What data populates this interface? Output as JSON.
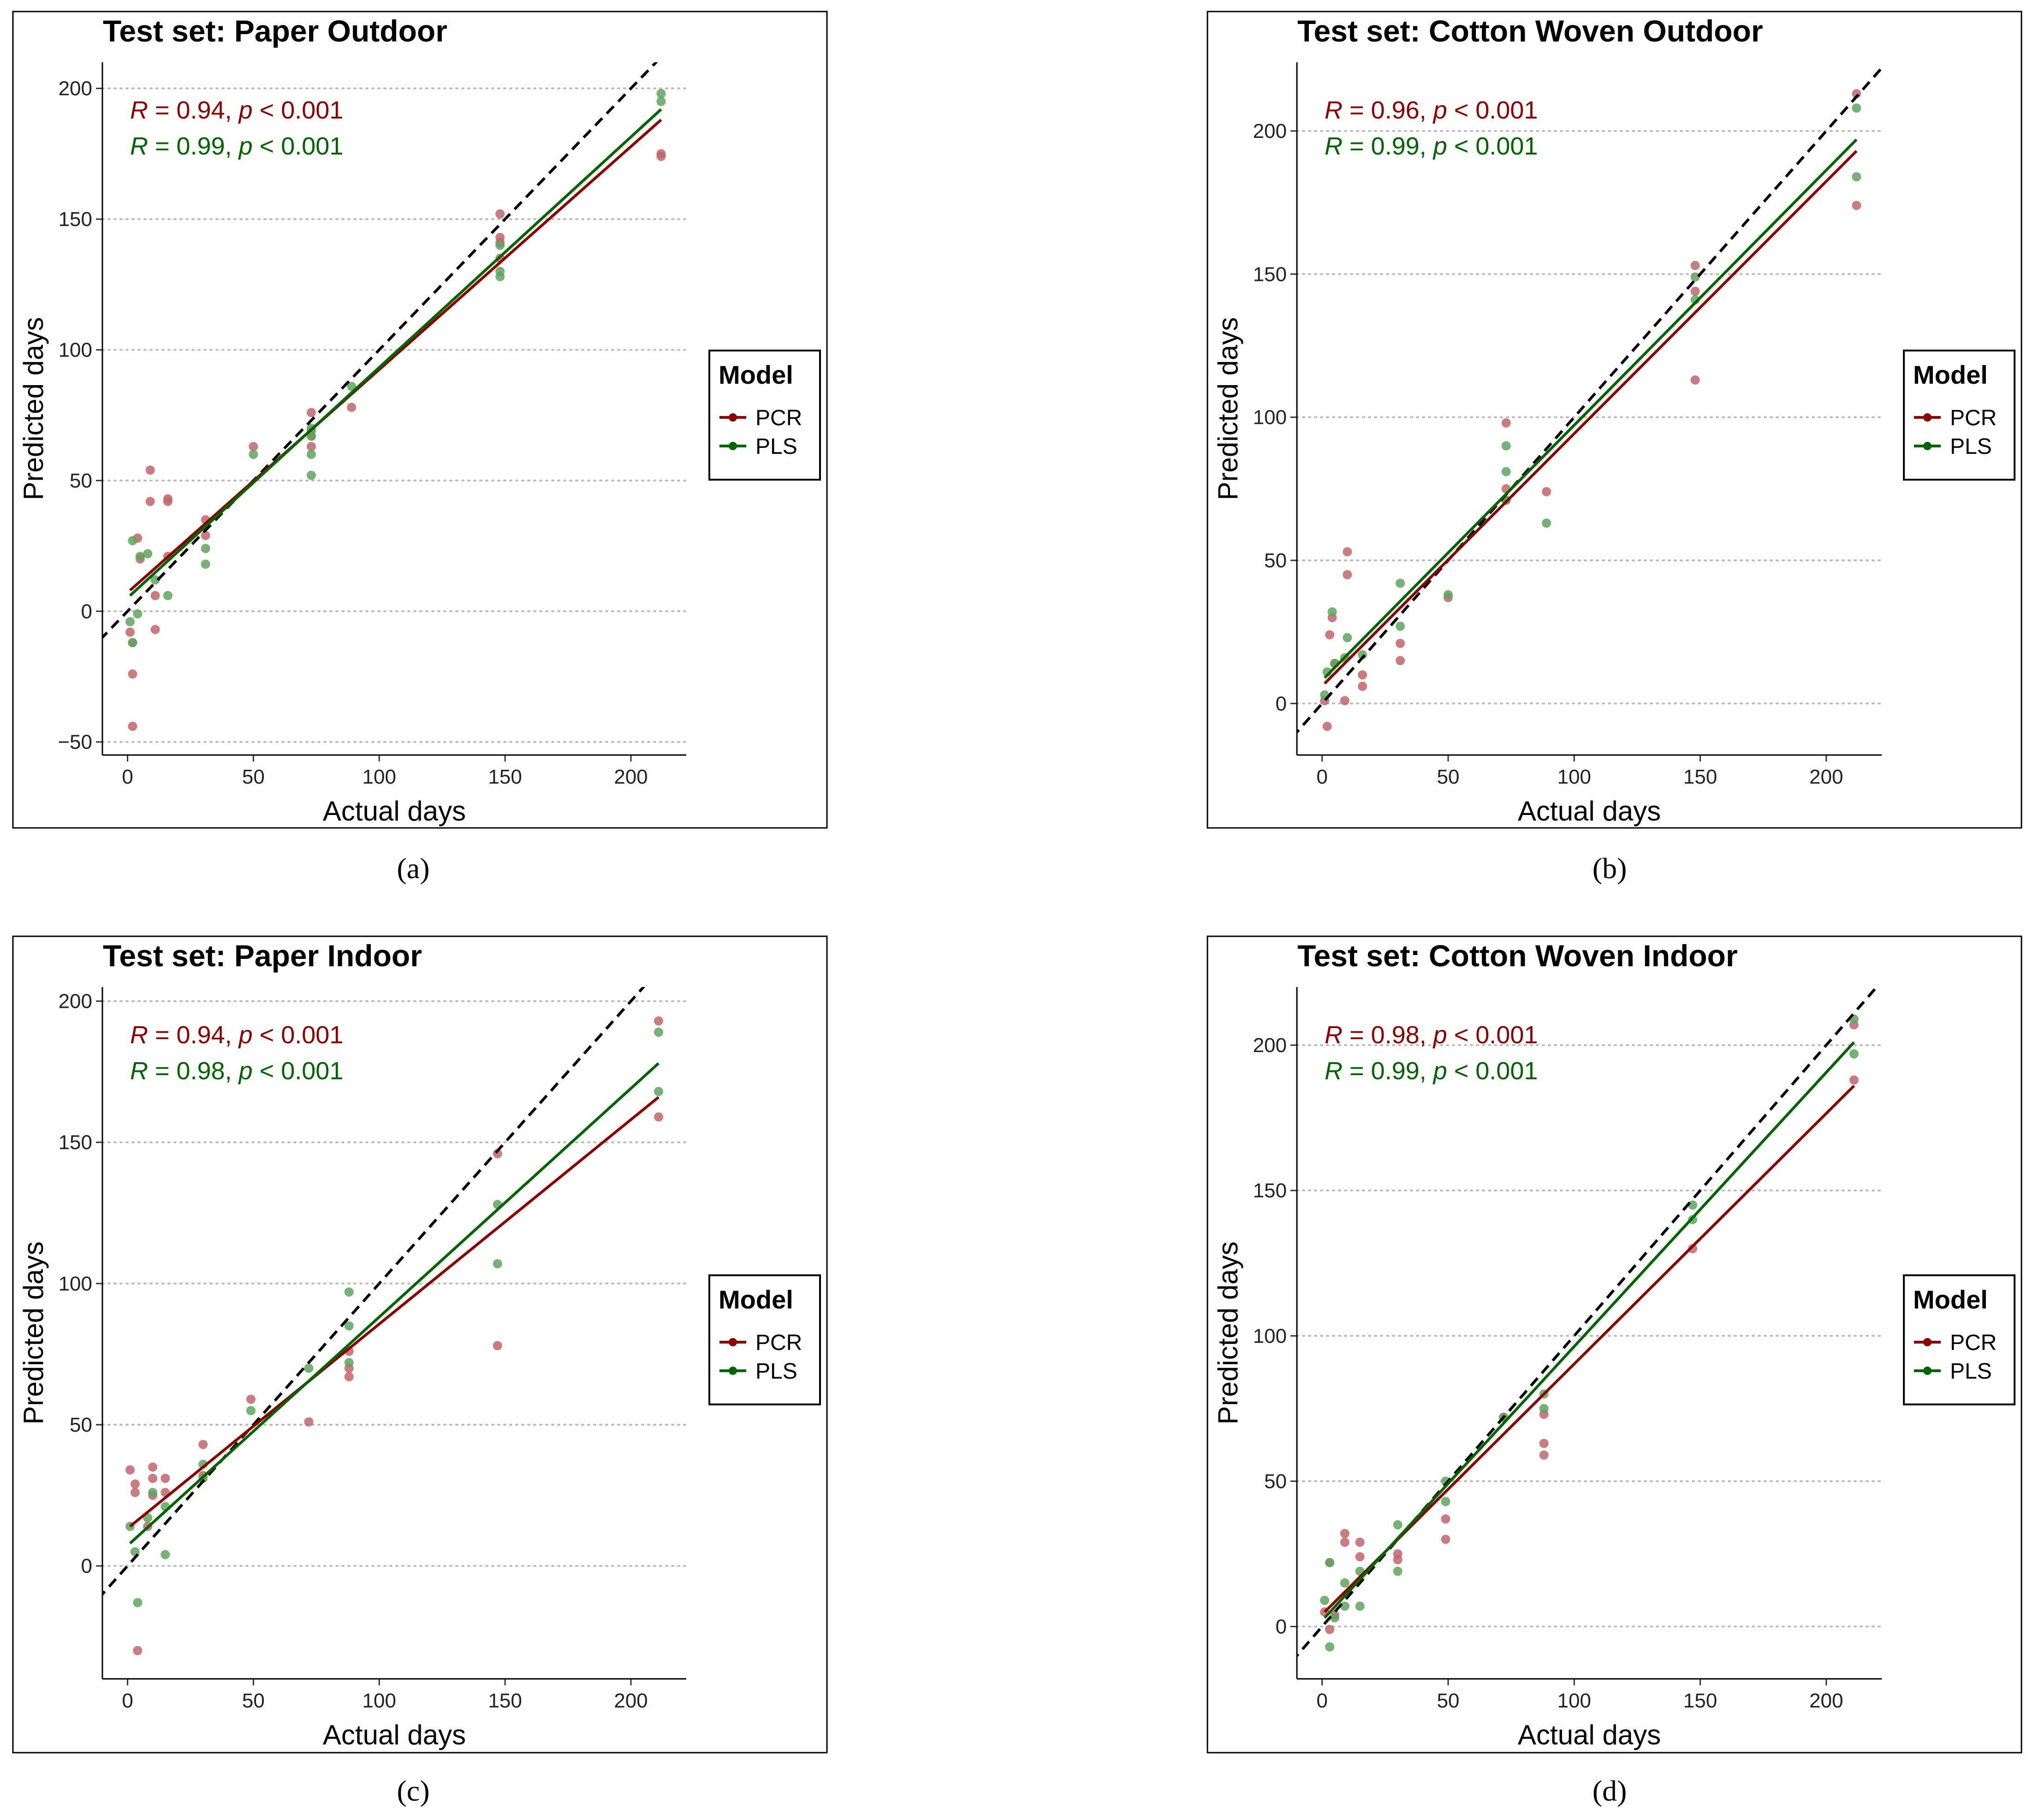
{
  "colors": {
    "pcr": "#8b0000",
    "pls": "#006400",
    "pcr_point": "#c0666a",
    "pls_point": "#5ea35e",
    "grid": "#bbbbbb",
    "identity": "#000000"
  },
  "legend": {
    "title": "Model",
    "labels": [
      "PCR",
      "PLS"
    ]
  },
  "x_axis_label": "Actual days",
  "y_axis_label": "Predicted days",
  "captions": [
    "(a)",
    "(b)",
    "(c)",
    "(d)"
  ],
  "chart_data": [
    {
      "type": "scatter",
      "title": "Test set: Paper Outdoor",
      "xlabel": "Actual days",
      "ylabel": "Predicted days",
      "xlim": [
        -10,
        222
      ],
      "ylim": [
        -55,
        210
      ],
      "xticks": [
        0,
        50,
        100,
        150,
        200
      ],
      "yticks": [
        -50,
        0,
        50,
        100,
        150,
        200
      ],
      "grid": "horizontal-dotted",
      "identity_line": true,
      "stats": [
        {
          "model": "PCR",
          "r": "0.94",
          "p": "0.001"
        },
        {
          "model": "PLS",
          "r": "0.99",
          "p": "0.001"
        }
      ],
      "series": [
        {
          "name": "PCR",
          "fit": [
            [
              1,
              8
            ],
            [
              212,
              188
            ]
          ],
          "points": [
            [
              1,
              -8
            ],
            [
              2,
              -12
            ],
            [
              2,
              -24
            ],
            [
              2,
              -44
            ],
            [
              4,
              28
            ],
            [
              5,
              20
            ],
            [
              9,
              54
            ],
            [
              9,
              42
            ],
            [
              11,
              6
            ],
            [
              11,
              -7
            ],
            [
              16,
              43
            ],
            [
              16,
              42
            ],
            [
              16,
              21
            ],
            [
              31,
              35
            ],
            [
              31,
              29
            ],
            [
              50,
              63
            ],
            [
              73,
              76
            ],
            [
              73,
              69
            ],
            [
              73,
              67
            ],
            [
              73,
              63
            ],
            [
              89,
              78
            ],
            [
              148,
              152
            ],
            [
              148,
              143
            ],
            [
              148,
              141
            ],
            [
              148,
              135
            ],
            [
              212,
              175
            ],
            [
              212,
              174
            ]
          ]
        },
        {
          "name": "PLS",
          "fit": [
            [
              1,
              6
            ],
            [
              212,
              192
            ]
          ],
          "points": [
            [
              1,
              -4
            ],
            [
              2,
              -12
            ],
            [
              2,
              27
            ],
            [
              4,
              -1
            ],
            [
              5,
              21
            ],
            [
              8,
              22
            ],
            [
              11,
              12
            ],
            [
              16,
              6
            ],
            [
              31,
              24
            ],
            [
              31,
              18
            ],
            [
              50,
              60
            ],
            [
              73,
              70
            ],
            [
              73,
              67
            ],
            [
              73,
              60
            ],
            [
              73,
              52
            ],
            [
              89,
              86
            ],
            [
              148,
              140
            ],
            [
              148,
              130
            ],
            [
              148,
              128
            ],
            [
              212,
              198
            ],
            [
              212,
              195
            ]
          ]
        }
      ]
    },
    {
      "type": "scatter",
      "title": "Test set: Cotton Woven Outdoor",
      "xlabel": "Actual days",
      "ylabel": "Predicted days",
      "xlim": [
        -10,
        222
      ],
      "ylim": [
        -18,
        224
      ],
      "xticks": [
        0,
        50,
        100,
        150,
        200
      ],
      "yticks": [
        0,
        50,
        100,
        150,
        200
      ],
      "grid": "horizontal-dotted",
      "identity_line": true,
      "stats": [
        {
          "model": "PCR",
          "r": "0.96",
          "p": "0.001"
        },
        {
          "model": "PLS",
          "r": "0.99",
          "p": "0.001"
        }
      ],
      "series": [
        {
          "name": "PCR",
          "fit": [
            [
              1,
              7
            ],
            [
              212,
              193
            ]
          ],
          "points": [
            [
              1,
              1
            ],
            [
              2,
              -8
            ],
            [
              3,
              24
            ],
            [
              4,
              30
            ],
            [
              5,
              14
            ],
            [
              9,
              1
            ],
            [
              10,
              53
            ],
            [
              10,
              45
            ],
            [
              16,
              10
            ],
            [
              16,
              6
            ],
            [
              31,
              21
            ],
            [
              31,
              15
            ],
            [
              50,
              37
            ],
            [
              73,
              98
            ],
            [
              73,
              75
            ],
            [
              73,
              71
            ],
            [
              89,
              74
            ],
            [
              148,
              153
            ],
            [
              148,
              144
            ],
            [
              148,
              113
            ],
            [
              212,
              213
            ],
            [
              212,
              174
            ]
          ]
        },
        {
          "name": "PLS",
          "fit": [
            [
              1,
              9
            ],
            [
              212,
              197
            ]
          ],
          "points": [
            [
              1,
              3
            ],
            [
              2,
              11
            ],
            [
              4,
              32
            ],
            [
              5,
              14
            ],
            [
              9,
              16
            ],
            [
              10,
              23
            ],
            [
              16,
              17
            ],
            [
              31,
              42
            ],
            [
              31,
              27
            ],
            [
              50,
              38
            ],
            [
              73,
              90
            ],
            [
              73,
              81
            ],
            [
              73,
              71
            ],
            [
              89,
              63
            ],
            [
              148,
              149
            ],
            [
              148,
              141
            ],
            [
              212,
              208
            ],
            [
              212,
              184
            ]
          ]
        }
      ]
    },
    {
      "type": "scatter",
      "title": "Test set: Paper Indoor",
      "xlabel": "Actual days",
      "ylabel": "Predicted days",
      "xlim": [
        -10,
        222
      ],
      "ylim": [
        -40,
        205
      ],
      "xticks": [
        0,
        50,
        100,
        150,
        200
      ],
      "yticks": [
        0,
        50,
        100,
        150,
        200
      ],
      "grid": "horizontal-dotted",
      "identity_line": true,
      "stats": [
        {
          "model": "PCR",
          "r": "0.94",
          "p": "0.001"
        },
        {
          "model": "PLS",
          "r": "0.98",
          "p": "0.001"
        }
      ],
      "series": [
        {
          "name": "PCR",
          "fit": [
            [
              1,
              14
            ],
            [
              211,
              166
            ]
          ],
          "points": [
            [
              1,
              34
            ],
            [
              3,
              29
            ],
            [
              3,
              26
            ],
            [
              4,
              -30
            ],
            [
              8,
              14
            ],
            [
              10,
              35
            ],
            [
              10,
              31
            ],
            [
              10,
              25
            ],
            [
              15,
              31
            ],
            [
              15,
              26
            ],
            [
              30,
              43
            ],
            [
              30,
              32
            ],
            [
              49,
              59
            ],
            [
              72,
              51
            ],
            [
              88,
              76
            ],
            [
              88,
              70
            ],
            [
              88,
              67
            ],
            [
              147,
              146
            ],
            [
              147,
              78
            ],
            [
              211,
              193
            ],
            [
              211,
              159
            ]
          ]
        },
        {
          "name": "PLS",
          "fit": [
            [
              1,
              8
            ],
            [
              211,
              178
            ]
          ],
          "points": [
            [
              1,
              14
            ],
            [
              3,
              5
            ],
            [
              4,
              -13
            ],
            [
              8,
              17
            ],
            [
              10,
              26
            ],
            [
              15,
              21
            ],
            [
              15,
              4
            ],
            [
              30,
              36
            ],
            [
              30,
              31
            ],
            [
              49,
              55
            ],
            [
              72,
              70
            ],
            [
              88,
              97
            ],
            [
              88,
              85
            ],
            [
              88,
              72
            ],
            [
              147,
              128
            ],
            [
              147,
              107
            ],
            [
              211,
              189
            ],
            [
              211,
              168
            ]
          ]
        }
      ]
    },
    {
      "type": "scatter",
      "title": "Test set: Cotton Woven Indoor",
      "xlabel": "Actual days",
      "ylabel": "Predicted days",
      "xlim": [
        -10,
        222
      ],
      "ylim": [
        -18,
        220
      ],
      "xticks": [
        0,
        50,
        100,
        150,
        200
      ],
      "yticks": [
        0,
        50,
        100,
        150,
        200
      ],
      "grid": "horizontal-dotted",
      "identity_line": true,
      "stats": [
        {
          "model": "PCR",
          "r": "0.98",
          "p": "0.001"
        },
        {
          "model": "PLS",
          "r": "0.99",
          "p": "0.001"
        }
      ],
      "series": [
        {
          "name": "PCR",
          "fit": [
            [
              1,
              5
            ],
            [
              211,
              186
            ]
          ],
          "points": [
            [
              1,
              5
            ],
            [
              3,
              22
            ],
            [
              3,
              -1
            ],
            [
              5,
              4
            ],
            [
              9,
              32
            ],
            [
              9,
              29
            ],
            [
              15,
              29
            ],
            [
              15,
              24
            ],
            [
              30,
              25
            ],
            [
              30,
              23
            ],
            [
              49,
              37
            ],
            [
              49,
              30
            ],
            [
              72,
              72
            ],
            [
              88,
              73
            ],
            [
              88,
              63
            ],
            [
              88,
              59
            ],
            [
              147,
              130
            ],
            [
              211,
              207
            ],
            [
              211,
              188
            ]
          ]
        },
        {
          "name": "PLS",
          "fit": [
            [
              1,
              3
            ],
            [
              211,
              201
            ]
          ],
          "points": [
            [
              1,
              9
            ],
            [
              3,
              -7
            ],
            [
              3,
              22
            ],
            [
              5,
              3
            ],
            [
              9,
              15
            ],
            [
              9,
              7
            ],
            [
              15,
              19
            ],
            [
              15,
              7
            ],
            [
              30,
              35
            ],
            [
              30,
              19
            ],
            [
              49,
              50
            ],
            [
              49,
              43
            ],
            [
              72,
              72
            ],
            [
              88,
              80
            ],
            [
              88,
              75
            ],
            [
              147,
              145
            ],
            [
              147,
              140
            ],
            [
              211,
              209
            ],
            [
              211,
              197
            ]
          ]
        }
      ]
    }
  ]
}
